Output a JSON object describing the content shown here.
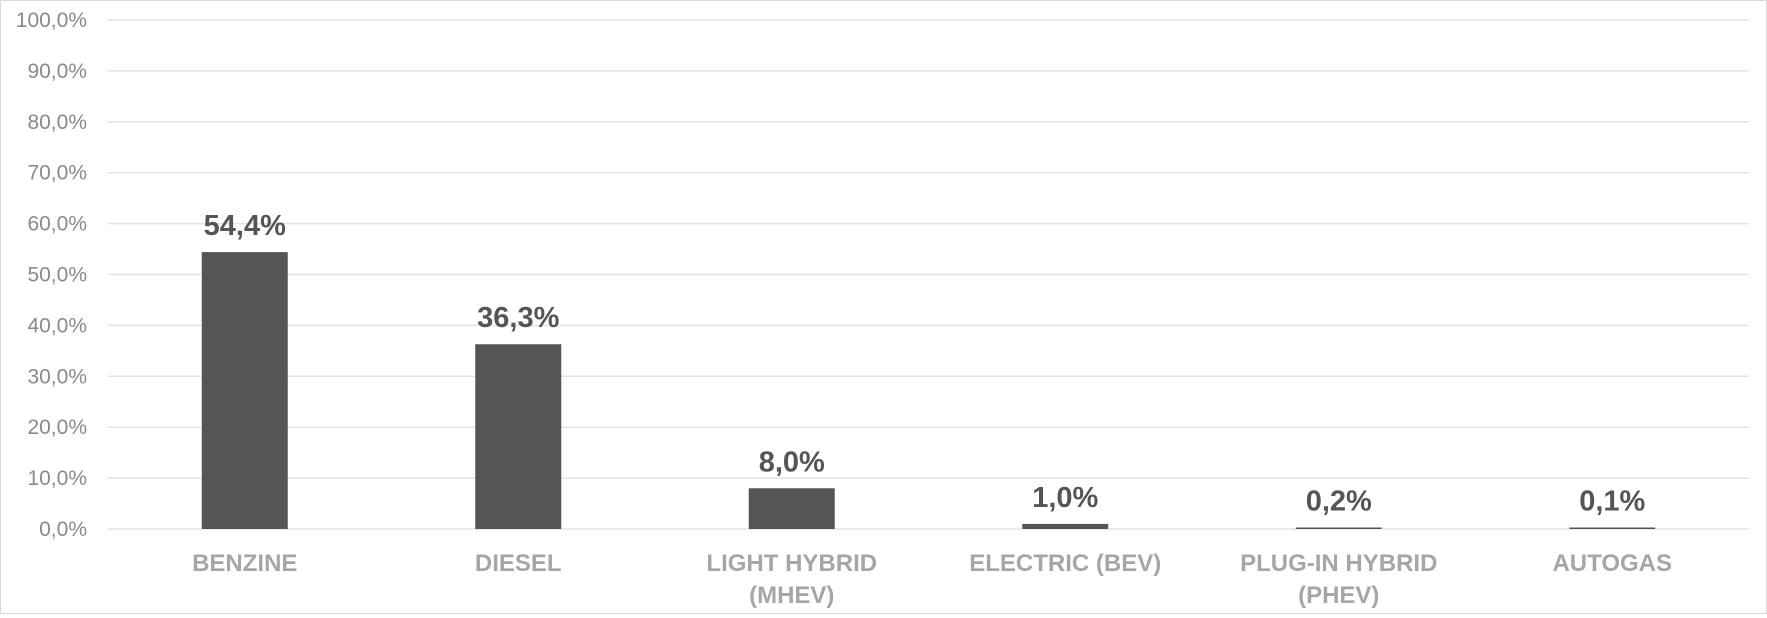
{
  "chart_data": {
    "type": "bar",
    "categories": [
      [
        "BENZINE"
      ],
      [
        "DIESEL"
      ],
      [
        "LIGHT HYBRID",
        "(MHEV)"
      ],
      [
        "ELECTRIC (BEV)"
      ],
      [
        "PLUG-IN HYBRID",
        "(PHEV)"
      ],
      [
        "AUTOGAS"
      ]
    ],
    "values": [
      54.4,
      36.3,
      8.0,
      1.0,
      0.2,
      0.1
    ],
    "data_labels": [
      "54,4%",
      "36,3%",
      "8,0%",
      "1,0%",
      "0,2%",
      "0,1%"
    ],
    "yticks": [
      0,
      10,
      20,
      30,
      40,
      50,
      60,
      70,
      80,
      90,
      100
    ],
    "ytick_labels": [
      "0,0%",
      "10,0%",
      "20,0%",
      "30,0%",
      "40,0%",
      "50,0%",
      "60,0%",
      "70,0%",
      "80,0%",
      "90,0%",
      "100,0%"
    ],
    "ylim": [
      0,
      100
    ],
    "grid": true,
    "bar_color": "#555555",
    "title": "",
    "xlabel": "",
    "ylabel": ""
  }
}
